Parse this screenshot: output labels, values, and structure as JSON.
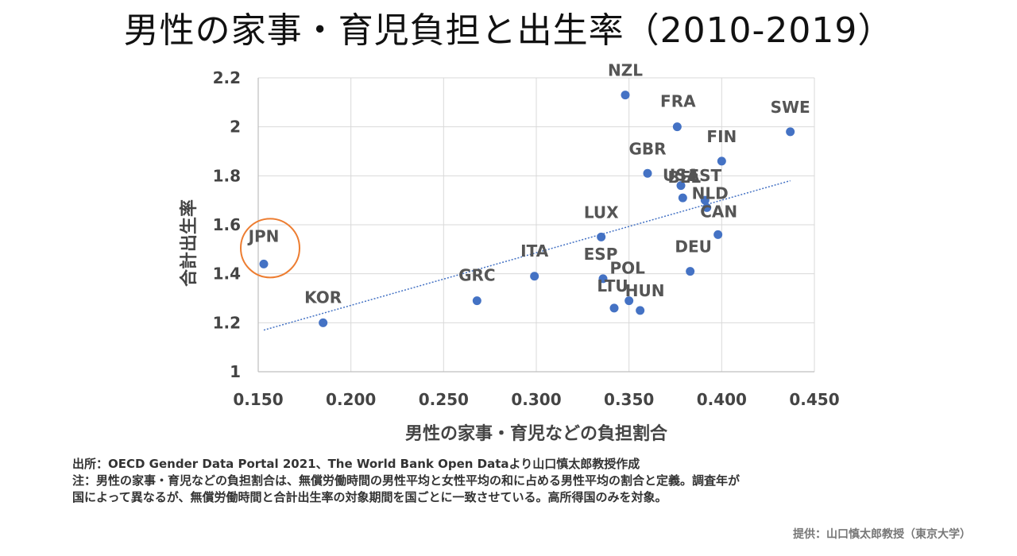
{
  "title": "男性の家事・育児負担と出生率（2010-2019）",
  "notes": {
    "source": "出所：OECD Gender Data Portal 2021、The World Bank Open Dataより山口慎太郎教授作成",
    "note_line1": "注：男性の家事・育児などの負担割合は、無償労働時間の男性平均と女性平均の和に占める男性平均の割合と定義。調査年が",
    "note_line2": "国によって異なるが、無償労働時間と合計出生率の対象期間を国ごとに一致させている。高所得国のみを対象。"
  },
  "credit": "提供：山口慎太郎教授（東京大学）",
  "colors": {
    "marker": "#4472C4",
    "trendline": "#4472C4",
    "highlight_circle": "#ED7D31",
    "grid": "#D9D9D9"
  },
  "chart_data": {
    "type": "scatter",
    "title": "男性の家事・育児負担と出生率（2010-2019）",
    "xlabel": "男性の家事・育児などの負担割合",
    "ylabel": "合計出生率",
    "xlim": [
      0.15,
      0.45
    ],
    "ylim": [
      1,
      2.2
    ],
    "x_ticks": [
      "0.150",
      "0.200",
      "0.250",
      "0.300",
      "0.350",
      "0.400",
      "0.450"
    ],
    "y_ticks": [
      "1",
      "1.2",
      "1.4",
      "1.6",
      "1.8",
      "2",
      "2.2"
    ],
    "grid": true,
    "trendline": {
      "type": "linear",
      "from": [
        0.153,
        1.17
      ],
      "to": [
        0.437,
        1.78
      ]
    },
    "highlight": "JPN",
    "points": [
      {
        "label": "JPN",
        "x": 0.153,
        "y": 1.44
      },
      {
        "label": "KOR",
        "x": 0.185,
        "y": 1.2
      },
      {
        "label": "GRC",
        "x": 0.268,
        "y": 1.29
      },
      {
        "label": "ITA",
        "x": 0.299,
        "y": 1.39
      },
      {
        "label": "LUX",
        "x": 0.335,
        "y": 1.55
      },
      {
        "label": "ESP",
        "x": 0.336,
        "y": 1.38
      },
      {
        "label": "LTU",
        "x": 0.342,
        "y": 1.26
      },
      {
        "label": "NZL",
        "x": 0.348,
        "y": 2.13
      },
      {
        "label": "POL",
        "x": 0.35,
        "y": 1.29
      },
      {
        "label": "HUN",
        "x": 0.356,
        "y": 1.25
      },
      {
        "label": "GBR",
        "x": 0.36,
        "y": 1.81
      },
      {
        "label": "FRA",
        "x": 0.376,
        "y": 2.0
      },
      {
        "label": "USA",
        "x": 0.378,
        "y": 1.76
      },
      {
        "label": "BEL",
        "x": 0.379,
        "y": 1.71
      },
      {
        "label": "DEU",
        "x": 0.383,
        "y": 1.41
      },
      {
        "label": "EST",
        "x": 0.391,
        "y": 1.7
      },
      {
        "label": "NLD",
        "x": 0.392,
        "y": 1.67
      },
      {
        "label": "CAN",
        "x": 0.398,
        "y": 1.56
      },
      {
        "label": "FIN",
        "x": 0.4,
        "y": 1.86
      },
      {
        "label": "SWE",
        "x": 0.437,
        "y": 1.98
      }
    ]
  }
}
